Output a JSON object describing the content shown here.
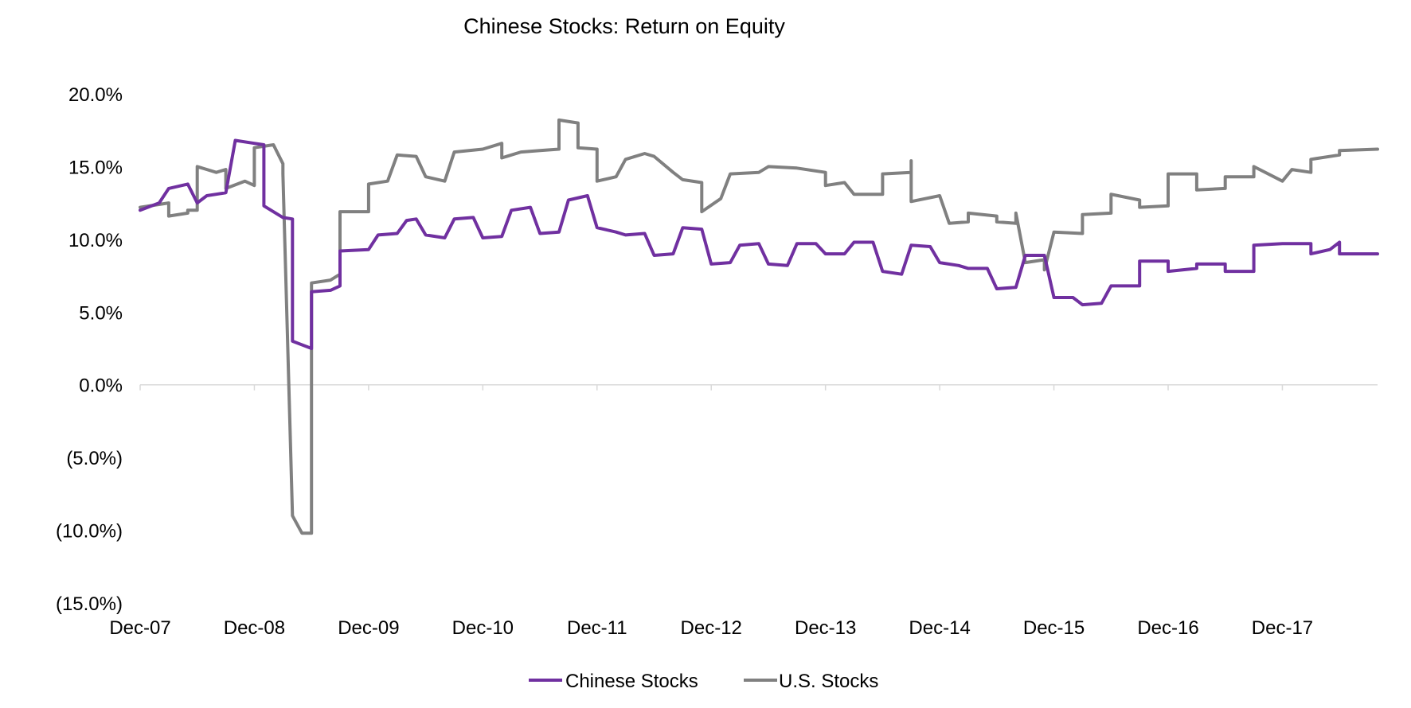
{
  "chart_data": {
    "type": "line",
    "title": "Chinese Stocks: Return on Equity",
    "xlabel": "",
    "ylabel": "",
    "x_ticks": [
      "Dec-07",
      "Dec-08",
      "Dec-09",
      "Dec-10",
      "Dec-11",
      "Dec-12",
      "Dec-13",
      "Dec-14",
      "Dec-15",
      "Dec-16",
      "Dec-17"
    ],
    "xlim": [
      "2007-12",
      "2018-10"
    ],
    "y_ticks": [
      {
        "value": 20,
        "label": "20.0%"
      },
      {
        "value": 15,
        "label": "15.0%"
      },
      {
        "value": 10,
        "label": "10.0%"
      },
      {
        "value": 5,
        "label": "5.0%"
      },
      {
        "value": 0,
        "label": "0.0%"
      },
      {
        "value": -5,
        "label": "(5.0%)"
      },
      {
        "value": -10,
        "label": "(10.0%)"
      },
      {
        "value": -15,
        "label": "(15.0%)"
      }
    ],
    "ylim": [
      -15,
      20
    ],
    "grid": false,
    "legend_position": "bottom",
    "series": [
      {
        "name": "Chinese Stocks",
        "color": "#7030a0",
        "points": [
          [
            "2007-12",
            12.0
          ],
          [
            "2008-02",
            12.5
          ],
          [
            "2008-03",
            13.5
          ],
          [
            "2008-05",
            13.8
          ],
          [
            "2008-06",
            12.5
          ],
          [
            "2008-07",
            13.0
          ],
          [
            "2008-09",
            13.2
          ],
          [
            "2008-10",
            16.8
          ],
          [
            "2008-12",
            16.6
          ],
          [
            "2009-01",
            16.5
          ],
          [
            "2009-01",
            12.3
          ],
          [
            "2009-03",
            11.5
          ],
          [
            "2009-04",
            11.4
          ],
          [
            "2009-04",
            3.0
          ],
          [
            "2009-06",
            2.5
          ],
          [
            "2009-06",
            6.4
          ],
          [
            "2009-08",
            6.5
          ],
          [
            "2009-09",
            6.8
          ],
          [
            "2009-09",
            9.2
          ],
          [
            "2009-12",
            9.3
          ],
          [
            "2010-01",
            10.3
          ],
          [
            "2010-03",
            10.4
          ],
          [
            "2010-04",
            11.3
          ],
          [
            "2010-05",
            11.4
          ],
          [
            "2010-06",
            10.3
          ],
          [
            "2010-08",
            10.1
          ],
          [
            "2010-09",
            11.4
          ],
          [
            "2010-11",
            11.5
          ],
          [
            "2010-12",
            10.1
          ],
          [
            "2011-02",
            10.2
          ],
          [
            "2011-03",
            12.0
          ],
          [
            "2011-05",
            12.2
          ],
          [
            "2011-06",
            10.4
          ],
          [
            "2011-08",
            10.5
          ],
          [
            "2011-09",
            12.7
          ],
          [
            "2011-11",
            13.0
          ],
          [
            "2011-12",
            10.8
          ],
          [
            "2012-02",
            10.5
          ],
          [
            "2012-03",
            10.3
          ],
          [
            "2012-05",
            10.4
          ],
          [
            "2012-06",
            8.9
          ],
          [
            "2012-08",
            9.0
          ],
          [
            "2012-09",
            10.8
          ],
          [
            "2012-11",
            10.7
          ],
          [
            "2012-12",
            8.3
          ],
          [
            "2013-02",
            8.4
          ],
          [
            "2013-03",
            9.6
          ],
          [
            "2013-05",
            9.7
          ],
          [
            "2013-06",
            8.3
          ],
          [
            "2013-08",
            8.2
          ],
          [
            "2013-09",
            9.7
          ],
          [
            "2013-11",
            9.7
          ],
          [
            "2013-12",
            9.0
          ],
          [
            "2014-02",
            9.0
          ],
          [
            "2014-03",
            9.8
          ],
          [
            "2014-05",
            9.8
          ],
          [
            "2014-06",
            7.8
          ],
          [
            "2014-08",
            7.6
          ],
          [
            "2014-09",
            9.6
          ],
          [
            "2014-11",
            9.5
          ],
          [
            "2014-12",
            8.4
          ],
          [
            "2015-02",
            8.2
          ],
          [
            "2015-03",
            8.0
          ],
          [
            "2015-05",
            8.0
          ],
          [
            "2015-06",
            6.6
          ],
          [
            "2015-08",
            6.7
          ],
          [
            "2015-09",
            8.9
          ],
          [
            "2015-11",
            8.9
          ],
          [
            "2015-12",
            6.0
          ],
          [
            "2016-02",
            6.0
          ],
          [
            "2016-03",
            5.5
          ],
          [
            "2016-05",
            5.6
          ],
          [
            "2016-06",
            6.8
          ],
          [
            "2016-09",
            6.8
          ],
          [
            "2016-09",
            8.5
          ],
          [
            "2016-12",
            8.5
          ],
          [
            "2016-12",
            7.8
          ],
          [
            "2017-03",
            8.0
          ],
          [
            "2017-03",
            8.3
          ],
          [
            "2017-06",
            8.3
          ],
          [
            "2017-06",
            7.8
          ],
          [
            "2017-09",
            7.8
          ],
          [
            "2017-09",
            9.6
          ],
          [
            "2017-12",
            9.7
          ],
          [
            "2018-03",
            9.7
          ],
          [
            "2018-03",
            9.0
          ],
          [
            "2018-05",
            9.3
          ],
          [
            "2018-06",
            9.8
          ],
          [
            "2018-06",
            9.0
          ],
          [
            "2018-10",
            9.0
          ]
        ]
      },
      {
        "name": "U.S. Stocks",
        "color": "#808080",
        "points": [
          [
            "2007-12",
            12.2
          ],
          [
            "2008-03",
            12.5
          ],
          [
            "2008-03",
            11.6
          ],
          [
            "2008-05",
            11.8
          ],
          [
            "2008-05",
            12.0
          ],
          [
            "2008-06",
            12.0
          ],
          [
            "2008-06",
            15.0
          ],
          [
            "2008-08",
            14.6
          ],
          [
            "2008-09",
            14.8
          ],
          [
            "2008-09",
            13.5
          ],
          [
            "2008-11",
            14.0
          ],
          [
            "2008-12",
            13.7
          ],
          [
            "2008-12",
            16.3
          ],
          [
            "2009-02",
            16.5
          ],
          [
            "2009-03",
            15.2
          ],
          [
            "2009-03",
            14.5
          ],
          [
            "2009-04",
            -9.0
          ],
          [
            "2009-05",
            -10.2
          ],
          [
            "2009-06",
            -10.2
          ],
          [
            "2009-06",
            7.0
          ],
          [
            "2009-08",
            7.2
          ],
          [
            "2009-09",
            7.6
          ],
          [
            "2009-09",
            11.9
          ],
          [
            "2009-12",
            11.9
          ],
          [
            "2009-12",
            13.8
          ],
          [
            "2010-02",
            14.0
          ],
          [
            "2010-03",
            15.8
          ],
          [
            "2010-05",
            15.7
          ],
          [
            "2010-06",
            14.3
          ],
          [
            "2010-08",
            14.0
          ],
          [
            "2010-09",
            16.0
          ],
          [
            "2010-12",
            16.2
          ],
          [
            "2011-02",
            16.6
          ],
          [
            "2011-02",
            15.6
          ],
          [
            "2011-04",
            16.0
          ],
          [
            "2011-06",
            16.1
          ],
          [
            "2011-08",
            16.2
          ],
          [
            "2011-08",
            18.2
          ],
          [
            "2011-10",
            18.0
          ],
          [
            "2011-10",
            16.3
          ],
          [
            "2011-12",
            16.2
          ],
          [
            "2011-12",
            14.0
          ],
          [
            "2012-02",
            14.3
          ],
          [
            "2012-03",
            15.5
          ],
          [
            "2012-05",
            15.9
          ],
          [
            "2012-06",
            15.7
          ],
          [
            "2012-08",
            14.6
          ],
          [
            "2012-09",
            14.1
          ],
          [
            "2012-11",
            13.9
          ],
          [
            "2012-11",
            11.9
          ],
          [
            "2013-01",
            12.8
          ],
          [
            "2013-02",
            14.5
          ],
          [
            "2013-05",
            14.6
          ],
          [
            "2013-06",
            15.0
          ],
          [
            "2013-09",
            14.9
          ],
          [
            "2013-12",
            14.6
          ],
          [
            "2013-12",
            13.7
          ],
          [
            "2014-02",
            13.9
          ],
          [
            "2014-03",
            13.1
          ],
          [
            "2014-06",
            13.1
          ],
          [
            "2014-06",
            14.5
          ],
          [
            "2014-09",
            14.6
          ],
          [
            "2014-09",
            15.4
          ],
          [
            "2014-09",
            12.6
          ],
          [
            "2014-12",
            13.0
          ],
          [
            "2015-01",
            11.1
          ],
          [
            "2015-03",
            11.2
          ],
          [
            "2015-03",
            11.8
          ],
          [
            "2015-06",
            11.6
          ],
          [
            "2015-06",
            11.2
          ],
          [
            "2015-08",
            11.1
          ],
          [
            "2015-08",
            11.8
          ],
          [
            "2015-09",
            8.4
          ],
          [
            "2015-11",
            8.6
          ],
          [
            "2015-11",
            7.9
          ],
          [
            "2015-12",
            10.5
          ],
          [
            "2016-03",
            10.4
          ],
          [
            "2016-03",
            11.7
          ],
          [
            "2016-06",
            11.8
          ],
          [
            "2016-06",
            13.1
          ],
          [
            "2016-09",
            12.7
          ],
          [
            "2016-09",
            12.2
          ],
          [
            "2016-12",
            12.3
          ],
          [
            "2016-12",
            14.5
          ],
          [
            "2017-03",
            14.5
          ],
          [
            "2017-03",
            13.4
          ],
          [
            "2017-06",
            13.5
          ],
          [
            "2017-06",
            14.3
          ],
          [
            "2017-09",
            14.3
          ],
          [
            "2017-09",
            15.0
          ],
          [
            "2017-12",
            14.0
          ],
          [
            "2018-01",
            14.8
          ],
          [
            "2018-03",
            14.6
          ],
          [
            "2018-03",
            15.5
          ],
          [
            "2018-06",
            15.8
          ],
          [
            "2018-06",
            16.1
          ],
          [
            "2018-10",
            16.2
          ]
        ]
      }
    ]
  }
}
